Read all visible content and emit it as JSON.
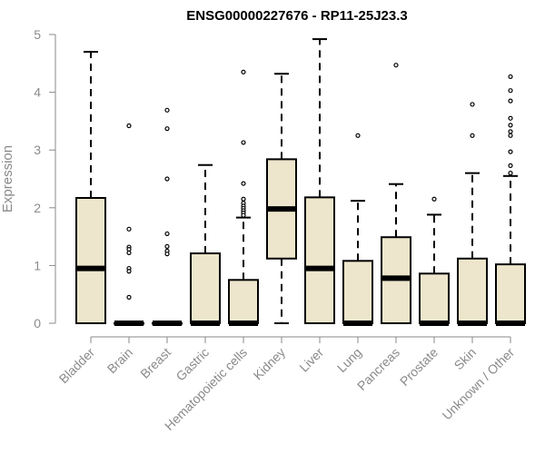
{
  "chart_data": {
    "type": "box",
    "title": "ENSG00000227676 - RP11-25J23.3",
    "xlabel": "",
    "ylabel": "Expression",
    "ylim": [
      0,
      5
    ],
    "yticks": [
      0,
      1,
      2,
      3,
      4,
      5
    ],
    "box_fill": "#ede6cc",
    "categories": [
      "Bladder",
      "Brain",
      "Breast",
      "Gastric",
      "Hematopoietic cells",
      "Kidney",
      "Liver",
      "Lung",
      "Pancreas",
      "Prostate",
      "Skin",
      "Unknown / Other"
    ],
    "boxes": [
      {
        "q1": 0,
        "median": 0.95,
        "q3": 2.17,
        "whisker_low": 0,
        "whisker_high": 4.7,
        "outliers": []
      },
      {
        "q1": 0,
        "median": 0,
        "q3": 0,
        "whisker_low": 0,
        "whisker_high": 0,
        "outliers": [
          3.42,
          1.63,
          1.32,
          1.28,
          1.22,
          0.95,
          0.9,
          0.45
        ]
      },
      {
        "q1": 0,
        "median": 0,
        "q3": 0,
        "whisker_low": 0,
        "whisker_high": 0,
        "outliers": [
          3.69,
          3.37,
          2.5,
          1.55,
          1.33,
          1.25,
          1.2
        ]
      },
      {
        "q1": 0,
        "median": 0,
        "q3": 1.21,
        "whisker_low": 0,
        "whisker_high": 2.74,
        "outliers": []
      },
      {
        "q1": 0,
        "median": 0,
        "q3": 0.75,
        "whisker_low": 0,
        "whisker_high": 1.83,
        "outliers": [
          4.35,
          3.13,
          2.42,
          2.15,
          2.08,
          2.03,
          1.99,
          1.95,
          1.91,
          1.87
        ]
      },
      {
        "q1": 1.12,
        "median": 1.98,
        "q3": 2.84,
        "whisker_low": 0,
        "whisker_high": 4.32,
        "outliers": []
      },
      {
        "q1": 0,
        "median": 0.95,
        "q3": 2.18,
        "whisker_low": 0,
        "whisker_high": 4.92,
        "outliers": []
      },
      {
        "q1": 0,
        "median": 0,
        "q3": 1.08,
        "whisker_low": 0,
        "whisker_high": 2.12,
        "outliers": [
          3.25
        ]
      },
      {
        "q1": 0,
        "median": 0.78,
        "q3": 1.49,
        "whisker_low": 0,
        "whisker_high": 2.41,
        "outliers": [
          4.47
        ]
      },
      {
        "q1": 0,
        "median": 0,
        "q3": 0.86,
        "whisker_low": 0,
        "whisker_high": 1.88,
        "outliers": [
          2.15
        ]
      },
      {
        "q1": 0,
        "median": 0,
        "q3": 1.12,
        "whisker_low": 0,
        "whisker_high": 2.6,
        "outliers": [
          3.79,
          3.25
        ]
      },
      {
        "q1": 0,
        "median": 0,
        "q3": 1.02,
        "whisker_low": 0,
        "whisker_high": 2.55,
        "outliers": [
          4.27,
          4.03,
          3.85,
          3.55,
          3.43,
          3.32,
          3.25,
          2.97,
          2.73,
          2.6
        ]
      }
    ]
  }
}
